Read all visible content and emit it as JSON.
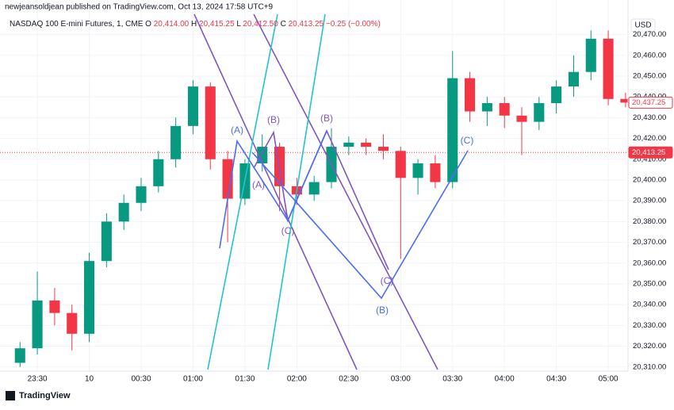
{
  "chart_data": {
    "type": "candlestick",
    "source": "newjeansoldjean published on TradingView.com, Oct 13, 2024 17:58 UTC+9",
    "symbol": "NASDAQ 100 E-mini Futures, 1, CME",
    "ohlc_legend": [
      {
        "key": "O",
        "text": "20,414.00"
      },
      {
        "key": "H",
        "text": "20,415.25"
      },
      {
        "key": "L",
        "text": "20,412.50"
      },
      {
        "key": "C",
        "text": "20,413.25"
      }
    ],
    "change": "−0.25 (−0.00%)",
    "currency": "USD",
    "brand": "TradingView",
    "up_color": "#089981",
    "down_color": "#f23645",
    "x": [
      -40,
      -30,
      -20,
      -10,
      0,
      10,
      20,
      30,
      40,
      50,
      60,
      70,
      80,
      90,
      100,
      110,
      120,
      130,
      140,
      150,
      160,
      170,
      180,
      190,
      200,
      210,
      220,
      230,
      240,
      250,
      260,
      270,
      280,
      290,
      300,
      310
    ],
    "open": [
      20312,
      20319,
      20342,
      20336,
      20326,
      20361,
      20380,
      20389,
      20397,
      20410,
      20426,
      20445,
      20410,
      20391,
      20408,
      20416,
      20397,
      20393,
      20399,
      20416,
      20418,
      20416,
      20414,
      20401,
      20408,
      20399,
      20449,
      20433,
      20437,
      20431,
      20428,
      20437,
      20445,
      20452,
      20468,
      20439
    ],
    "high": [
      20322,
      20356,
      20348,
      20340,
      20365,
      20384,
      20393,
      20401,
      20414,
      20430,
      20448,
      20447,
      20414,
      20410,
      20422,
      20418,
      20401,
      20402,
      20425,
      20421,
      20420,
      20422,
      20416,
      20410,
      20412,
      20462,
      20452,
      20440,
      20440,
      20435,
      20440,
      20448,
      20460,
      20472,
      20472,
      20442
    ],
    "low": [
      20310,
      20316,
      20330,
      20318,
      20322,
      20358,
      20376,
      20385,
      20394,
      20406,
      20422,
      20405,
      20370,
      20388,
      20404,
      20385,
      20388,
      20390,
      20396,
      20412,
      20412,
      20410,
      20362,
      20393,
      20396,
      20396,
      20428,
      20426,
      20425,
      20412,
      20424,
      20432,
      20440,
      20448,
      20436,
      20435
    ],
    "close": [
      20319,
      20342,
      20336,
      20326,
      20361,
      20380,
      20389,
      20397,
      20410,
      20426,
      20445,
      20410,
      20391,
      20408,
      20416,
      20397,
      20393,
      20399,
      20416,
      20418,
      20416,
      20414,
      20401,
      20408,
      20399,
      20449,
      20433,
      20437,
      20431,
      20428,
      20437,
      20445,
      20452,
      20468,
      20439,
      20437.25
    ],
    "xlim": [
      -47,
      310.5
    ],
    "ylim": [
      20308,
      20479
    ],
    "xticks": [
      {
        "value": -30,
        "label": "23:30"
      },
      {
        "value": 0,
        "label": "10"
      },
      {
        "value": 30,
        "label": "00:30"
      },
      {
        "value": 60,
        "label": "01:00"
      },
      {
        "value": 90,
        "label": "01:30"
      },
      {
        "value": 120,
        "label": "02:00"
      },
      {
        "value": 150,
        "label": "02:30"
      },
      {
        "value": 180,
        "label": "03:00"
      },
      {
        "value": 210,
        "label": "03:30"
      },
      {
        "value": 240,
        "label": "04:00"
      },
      {
        "value": 270,
        "label": "04:30"
      },
      {
        "value": 300,
        "label": "05:00"
      }
    ],
    "yticks": [
      {
        "value": 20310,
        "label": "20,310.00"
      },
      {
        "value": 20320,
        "label": "20,320.00"
      },
      {
        "value": 20330,
        "label": "20,330.00"
      },
      {
        "value": 20340,
        "label": "20,340.00"
      },
      {
        "value": 20350,
        "label": "20,350.00"
      },
      {
        "value": 20360,
        "label": "20,360.00"
      },
      {
        "value": 20370,
        "label": "20,370.00"
      },
      {
        "value": 20380,
        "label": "20,380.00"
      },
      {
        "value": 20390,
        "label": "20,390.00"
      },
      {
        "value": 20400,
        "label": "20,400.00"
      },
      {
        "value": 20410,
        "label": "20,410.00"
      },
      {
        "value": 20420,
        "label": "20,420.00"
      },
      {
        "value": 20430,
        "label": "20,430.00"
      },
      {
        "value": 20440,
        "label": "20,440.00"
      },
      {
        "value": 20450,
        "label": "20,450.00"
      },
      {
        "value": 20460,
        "label": "20,460.00"
      },
      {
        "value": 20470,
        "label": "20,470.00"
      }
    ],
    "grid": true,
    "price_markers": [
      {
        "value": 20437.25,
        "label": "20,437.25",
        "style": "outline"
      },
      {
        "value": 20413.25,
        "label": "20,413.25",
        "style": "filled"
      }
    ],
    "annotations": [
      {
        "text": "(A)",
        "color": "#4a6cf7"
      },
      {
        "text": "(B)",
        "color": "#7e57c2"
      },
      {
        "text": "(A)",
        "color": "#7e57c2"
      },
      {
        "text": "(B)",
        "color": "#7e57c2"
      },
      {
        "text": "(C)",
        "color": "#7e57c2"
      },
      {
        "text": "(C)",
        "color": "#7e57c2"
      },
      {
        "text": "(B)",
        "color": "#4a6cf7"
      },
      {
        "text": "(C)",
        "color": "#4a6cf7"
      }
    ]
  }
}
